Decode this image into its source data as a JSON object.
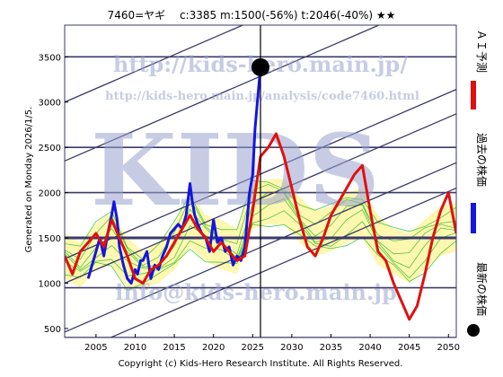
{
  "chart_data": {
    "type": "line",
    "title": "7460=ヤギ　 c:3385  m:1500(-56%)  t:2046(-40%)  ★★",
    "xlim": [
      2001,
      2051
    ],
    "ylim": [
      400,
      3850
    ],
    "xticks": [
      2005,
      2010,
      2015,
      2020,
      2025,
      2030,
      2035,
      2040,
      2045,
      2050
    ],
    "yticks": [
      500,
      1000,
      1500,
      2000,
      2500,
      3000,
      3500
    ],
    "hlines": [
      400,
      950,
      1500,
      2000,
      2500,
      3500
    ],
    "hline_bold": 1500,
    "vline_x": 2026,
    "current_point": {
      "x": 2026.0,
      "y": 3385
    },
    "trend_lines": [
      {
        "x": [
          2001,
          2051
        ],
        "y": [
          180,
          2050
        ]
      },
      {
        "x": [
          2001,
          2051
        ],
        "y": [
          460,
          2330
        ]
      },
      {
        "x": [
          2001,
          2051
        ],
        "y": [
          1000,
          2870
        ]
      },
      {
        "x": [
          2001,
          2051
        ],
        "y": [
          1270,
          3140
        ]
      },
      {
        "x": [
          2001,
          2051
        ],
        "y": [
          2350,
          4220
        ]
      },
      {
        "x": [
          2001,
          2051
        ],
        "y": [
          3000,
          4870
        ]
      }
    ],
    "series": [
      {
        "name": "過去の株価",
        "color": "#1515e0",
        "x": [
          2004.0,
          2004.5,
          2005.0,
          2005.5,
          2006.0,
          2006.5,
          2007.0,
          2007.3,
          2007.7,
          2008.0,
          2008.5,
          2009.0,
          2009.5,
          2010.0,
          2010.3,
          2010.7,
          2011.0,
          2011.5,
          2012.0,
          2012.5,
          2013.0,
          2013.5,
          2014.0,
          2014.5,
          2015.0,
          2015.5,
          2016.0,
          2016.5,
          2017.0,
          2017.3,
          2017.6,
          2018.0,
          2018.5,
          2019.0,
          2019.5,
          2020.0,
          2020.5,
          2021.0,
          2021.5,
          2022.0,
          2022.5,
          2023.0,
          2023.5,
          2024.0,
          2024.3,
          2024.6,
          2025.0,
          2025.3,
          2025.6,
          2026.0
        ],
        "y": [
          1050,
          1200,
          1350,
          1500,
          1300,
          1550,
          1750,
          1900,
          1700,
          1400,
          1200,
          1050,
          1000,
          1150,
          1100,
          1250,
          1250,
          1350,
          1050,
          1200,
          1150,
          1300,
          1400,
          1550,
          1600,
          1650,
          1600,
          1750,
          2100,
          1900,
          1750,
          1650,
          1550,
          1500,
          1350,
          1700,
          1450,
          1500,
          1350,
          1400,
          1200,
          1300,
          1250,
          1400,
          1700,
          2000,
          2200,
          2700,
          3000,
          3385
        ]
      },
      {
        "name": "ＡＩ予測",
        "color": "#e01010",
        "x": [
          2001.0,
          2002.0,
          2003.0,
          2004.0,
          2005.0,
          2006.0,
          2007.0,
          2008.0,
          2009.0,
          2010.0,
          2011.0,
          2012.0,
          2013.0,
          2014.0,
          2015.0,
          2016.0,
          2017.0,
          2018.0,
          2019.0,
          2020.0,
          2021.0,
          2022.0,
          2023.0,
          2024.0,
          2025.0,
          2026.0,
          2027.0,
          2028.0,
          2029.0,
          2030.0,
          2031.0,
          2032.0,
          2033.0,
          2034.0,
          2035.0,
          2036.0,
          2037.0,
          2038.0,
          2039.0,
          2040.0,
          2041.0,
          2042.0,
          2043.0,
          2044.0,
          2045.0,
          2046.0,
          2047.0,
          2048.0,
          2049.0,
          2050.0,
          2051.0
        ],
        "y": [
          1300,
          1100,
          1350,
          1450,
          1550,
          1400,
          1700,
          1500,
          1300,
          1050,
          1000,
          1150,
          1200,
          1300,
          1450,
          1600,
          1750,
          1600,
          1500,
          1350,
          1450,
          1350,
          1250,
          1300,
          1800,
          2400,
          2500,
          2650,
          2400,
          2050,
          1700,
          1400,
          1300,
          1500,
          1750,
          1900,
          2050,
          2200,
          2300,
          1800,
          1350,
          1250,
          1000,
          800,
          600,
          750,
          1100,
          1500,
          1800,
          2000,
          1550
        ]
      },
      {
        "name": "最新の株価",
        "color": "#000000",
        "x": [
          2026.0
        ],
        "y": [
          3385
        ]
      }
    ],
    "band": {
      "x": [
        2001,
        2003,
        2005,
        2007,
        2009,
        2011,
        2013,
        2015,
        2017,
        2019,
        2021,
        2023,
        2025,
        2027,
        2029,
        2031,
        2033,
        2035,
        2037,
        2039,
        2041,
        2043,
        2045,
        2047,
        2049,
        2051
      ],
      "low": [
        1050,
        950,
        1150,
        1200,
        950,
        950,
        1000,
        1150,
        1400,
        1250,
        1150,
        1100,
        1600,
        1650,
        1650,
        1450,
        1300,
        1350,
        1450,
        1500,
        1200,
        1100,
        1000,
        1150,
        1300,
        1350
      ],
      "high": [
        1550,
        1450,
        1650,
        1800,
        1500,
        1350,
        1450,
        1650,
        2000,
        1750,
        1700,
        1600,
        2100,
        2150,
        2150,
        1950,
        1800,
        1850,
        2000,
        2050,
        1750,
        1600,
        1550,
        1700,
        1850,
        1900
      ]
    },
    "legend_position": "right-vertical"
  },
  "watermarks": {
    "url_big": "http://kids-hero.main.jp/",
    "url_small": "http://kids-hero.main.jp/analysis/code7460.html",
    "center": "KIDS",
    "email": "info@kids-hero.main.jp"
  },
  "labels": {
    "generated": "Generated on Monday 2026/1/5.",
    "copyright": "Copyright (c) Kids-Hero Research Institute. All Rights Reserved."
  },
  "colors": {
    "frame": "#3a3a6a",
    "hline": "#3a3a6a",
    "band_fill": "#fdf7b0",
    "band_line": "#22bb22",
    "blue": "#1515e0",
    "red": "#e01010"
  }
}
